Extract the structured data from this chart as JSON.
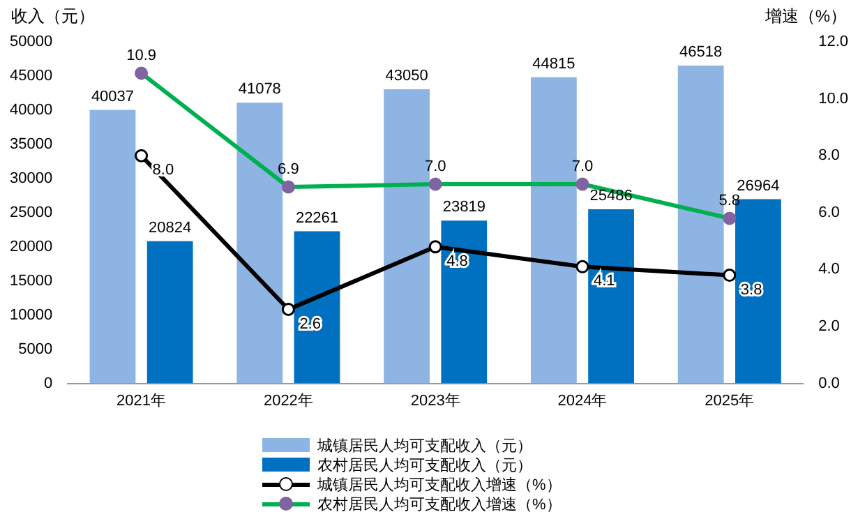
{
  "chart_data": {
    "type": "bar",
    "ylabel": "收入（元）",
    "y2label": "增速（%）",
    "categories": [
      "2021年",
      "2022年",
      "2023年",
      "2024年",
      "2025年"
    ],
    "series": [
      {
        "name": "城镇居民人均可支配收入（元）",
        "color": "#8db4e2",
        "values": [
          40037,
          41078,
          43050,
          44815,
          46518
        ],
        "value_labels": [
          "40037",
          "41078",
          "43050",
          "44815",
          "46518"
        ]
      },
      {
        "name": "农村居民人均可支配收入（元）",
        "color": "#0070c0",
        "values": [
          20824,
          22261,
          23819,
          25486,
          26964
        ],
        "value_labels": [
          "20824",
          "22261",
          "23819",
          "25486",
          "26964"
        ]
      },
      {
        "name": "城镇居民人均可支配收入增速（%）",
        "type": "line",
        "axis": "y2",
        "color": "#000000",
        "values": [
          8.0,
          2.6,
          4.8,
          4.1,
          3.8
        ],
        "value_labels": [
          "8.0",
          "2.6",
          "4.8",
          "4.1",
          "3.8"
        ]
      },
      {
        "name": "农村居民人均可支配收入增速（%）",
        "type": "line",
        "axis": "y2",
        "color": "#00b050",
        "values": [
          10.9,
          6.9,
          7.0,
          7.0,
          5.8
        ],
        "value_labels": [
          "10.9",
          "6.9",
          "7.0",
          "7.0",
          "5.8"
        ]
      }
    ],
    "ylim": [
      0,
      50000
    ],
    "yticks": [
      0,
      5000,
      10000,
      15000,
      20000,
      25000,
      30000,
      35000,
      40000,
      45000,
      50000
    ],
    "y2lim": [
      0,
      12
    ],
    "y2ticks": [
      {
        "value": 0,
        "label": "0.0"
      },
      {
        "value": 2,
        "label": "2.0"
      },
      {
        "value": 4,
        "label": "4.0"
      },
      {
        "value": 6,
        "label": "6.0"
      },
      {
        "value": 8,
        "label": "8.0"
      },
      {
        "value": 10,
        "label": "10.0"
      },
      {
        "value": 12,
        "label": "12.0"
      }
    ],
    "legend": "bottom",
    "marker": "circle",
    "line_style": "solid"
  }
}
